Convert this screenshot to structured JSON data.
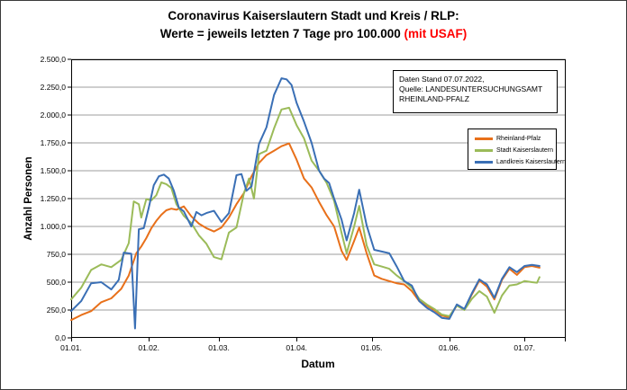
{
  "title": {
    "line1": "Coronavirus Kaiserslautern Stadt und Kreis / RLP:",
    "line2_main": "Werte = jeweils letzten 7 Tage pro 100.000 ",
    "line2_red": "(mit USAF)",
    "red_color": "#ff0000"
  },
  "annotation_box": {
    "lines": [
      "Daten Stand 07.07.2022,",
      "Quelle: LANDESUNTERSUCHUNGSAMT",
      "RHEINLAND-PFALZ"
    ]
  },
  "y_axis": {
    "label": "Anzahl Personen",
    "tick_labels": [
      "2.500,0",
      "2.250,0",
      "2.000,0",
      "1.750,0",
      "1.500,0",
      "1.250,0",
      "1.000,0",
      "750,0",
      "500,0",
      "250,0",
      "0,0"
    ],
    "tick_values": [
      2500,
      2250,
      2000,
      1750,
      1500,
      1250,
      1000,
      750,
      500,
      250,
      0
    ]
  },
  "x_axis": {
    "label": "Datum",
    "ticks": [
      {
        "label": "01.01.",
        "day": 0
      },
      {
        "label": "01.02.",
        "day": 31
      },
      {
        "label": "01.03.",
        "day": 59
      },
      {
        "label": "01.04.",
        "day": 90
      },
      {
        "label": "01.05.",
        "day": 120
      },
      {
        "label": "01.06.",
        "day": 151
      },
      {
        "label": "01.07.",
        "day": 181
      }
    ]
  },
  "legend": {
    "entries": [
      {
        "label": "Rheinland-Pfalz",
        "color": "#e8701a"
      },
      {
        "label": "Stadt Kaiserslautern",
        "color": "#9bbb59"
      },
      {
        "label": "Landkreis Kaiserslautern",
        "color": "#3a6fb5"
      }
    ]
  },
  "chart_data": {
    "type": "line",
    "title": "Coronavirus Kaiserslautern Stadt und Kreis / RLP: Werte = jeweils letzten 7 Tage pro 100.000 (mit USAF)",
    "xlabel": "Datum",
    "ylabel": "Anzahl Personen",
    "x_unit": "days since 01.01.2022",
    "x_range_days": [
      0,
      197
    ],
    "ylim": [
      0,
      2500
    ],
    "y_tick_step": 250,
    "grid": true,
    "legend_position": "right",
    "gridline_color": "#9c9c9c",
    "axis_color": "#000000",
    "series": [
      {
        "name": "Rheinland-Pfalz",
        "color": "#e8701a",
        "points": [
          [
            0,
            160
          ],
          [
            4,
            205
          ],
          [
            8,
            240
          ],
          [
            12,
            320
          ],
          [
            16,
            355
          ],
          [
            20,
            440
          ],
          [
            23,
            560
          ],
          [
            26,
            760
          ],
          [
            28,
            820
          ],
          [
            30,
            895
          ],
          [
            32,
            985
          ],
          [
            34,
            1050
          ],
          [
            36,
            1105
          ],
          [
            38,
            1145
          ],
          [
            40,
            1160
          ],
          [
            42,
            1150
          ],
          [
            45,
            1180
          ],
          [
            48,
            1090
          ],
          [
            51,
            1025
          ],
          [
            54,
            985
          ],
          [
            57,
            955
          ],
          [
            60,
            990
          ],
          [
            63,
            1080
          ],
          [
            66,
            1200
          ],
          [
            69,
            1300
          ],
          [
            72,
            1450
          ],
          [
            75,
            1570
          ],
          [
            78,
            1640
          ],
          [
            81,
            1680
          ],
          [
            84,
            1720
          ],
          [
            87,
            1745
          ],
          [
            90,
            1600
          ],
          [
            93,
            1430
          ],
          [
            96,
            1350
          ],
          [
            99,
            1220
          ],
          [
            102,
            1100
          ],
          [
            105,
            1000
          ],
          [
            108,
            780
          ],
          [
            110,
            700
          ],
          [
            113,
            870
          ],
          [
            115,
            990
          ],
          [
            118,
            760
          ],
          [
            121,
            560
          ],
          [
            124,
            530
          ],
          [
            127,
            510
          ],
          [
            130,
            490
          ],
          [
            133,
            480
          ],
          [
            136,
            420
          ],
          [
            139,
            330
          ],
          [
            142,
            290
          ],
          [
            145,
            250
          ],
          [
            148,
            200
          ],
          [
            151,
            185
          ],
          [
            154,
            290
          ],
          [
            157,
            255
          ],
          [
            160,
            390
          ],
          [
            163,
            515
          ],
          [
            166,
            460
          ],
          [
            169,
            345
          ],
          [
            172,
            520
          ],
          [
            175,
            620
          ],
          [
            178,
            565
          ],
          [
            181,
            635
          ],
          [
            184,
            645
          ],
          [
            187,
            630
          ]
        ]
      },
      {
        "name": "Stadt Kaiserslautern",
        "color": "#9bbb59",
        "points": [
          [
            0,
            345
          ],
          [
            4,
            450
          ],
          [
            8,
            610
          ],
          [
            12,
            660
          ],
          [
            16,
            635
          ],
          [
            20,
            700
          ],
          [
            23,
            850
          ],
          [
            25,
            1225
          ],
          [
            27,
            1200
          ],
          [
            28,
            1080
          ],
          [
            30,
            1245
          ],
          [
            32,
            1235
          ],
          [
            34,
            1280
          ],
          [
            36,
            1395
          ],
          [
            38,
            1380
          ],
          [
            40,
            1345
          ],
          [
            42,
            1200
          ],
          [
            45,
            1095
          ],
          [
            48,
            1030
          ],
          [
            51,
            920
          ],
          [
            54,
            845
          ],
          [
            57,
            725
          ],
          [
            60,
            705
          ],
          [
            63,
            945
          ],
          [
            66,
            990
          ],
          [
            69,
            1300
          ],
          [
            71,
            1430
          ],
          [
            73,
            1250
          ],
          [
            75,
            1650
          ],
          [
            78,
            1680
          ],
          [
            81,
            1880
          ],
          [
            84,
            2050
          ],
          [
            87,
            2065
          ],
          [
            90,
            1910
          ],
          [
            93,
            1790
          ],
          [
            96,
            1590
          ],
          [
            99,
            1500
          ],
          [
            102,
            1390
          ],
          [
            105,
            1230
          ],
          [
            108,
            940
          ],
          [
            110,
            760
          ],
          [
            113,
            1000
          ],
          [
            115,
            1185
          ],
          [
            118,
            830
          ],
          [
            121,
            660
          ],
          [
            124,
            640
          ],
          [
            127,
            620
          ],
          [
            130,
            560
          ],
          [
            133,
            510
          ],
          [
            136,
            450
          ],
          [
            139,
            350
          ],
          [
            142,
            300
          ],
          [
            145,
            260
          ],
          [
            148,
            210
          ],
          [
            151,
            195
          ],
          [
            154,
            290
          ],
          [
            157,
            250
          ],
          [
            160,
            350
          ],
          [
            163,
            420
          ],
          [
            166,
            370
          ],
          [
            169,
            225
          ],
          [
            172,
            380
          ],
          [
            175,
            470
          ],
          [
            178,
            480
          ],
          [
            181,
            510
          ],
          [
            184,
            500
          ],
          [
            186,
            495
          ],
          [
            187,
            545
          ]
        ]
      },
      {
        "name": "Landkreis Kaiserslautern",
        "color": "#3a6fb5",
        "points": [
          [
            0,
            240
          ],
          [
            4,
            330
          ],
          [
            8,
            490
          ],
          [
            12,
            500
          ],
          [
            16,
            435
          ],
          [
            19,
            520
          ],
          [
            21,
            765
          ],
          [
            24,
            755
          ],
          [
            25.5,
            85
          ],
          [
            27,
            975
          ],
          [
            29,
            985
          ],
          [
            31,
            1170
          ],
          [
            33,
            1370
          ],
          [
            35,
            1450
          ],
          [
            37,
            1465
          ],
          [
            39,
            1430
          ],
          [
            41,
            1320
          ],
          [
            43,
            1170
          ],
          [
            45,
            1135
          ],
          [
            48,
            1000
          ],
          [
            50,
            1130
          ],
          [
            52,
            1100
          ],
          [
            54,
            1120
          ],
          [
            57,
            1140
          ],
          [
            60,
            1040
          ],
          [
            63,
            1120
          ],
          [
            66,
            1460
          ],
          [
            68,
            1470
          ],
          [
            70,
            1320
          ],
          [
            72,
            1360
          ],
          [
            75,
            1740
          ],
          [
            78,
            1890
          ],
          [
            81,
            2180
          ],
          [
            84,
            2330
          ],
          [
            86,
            2320
          ],
          [
            88,
            2270
          ],
          [
            90,
            2110
          ],
          [
            93,
            1940
          ],
          [
            96,
            1750
          ],
          [
            99,
            1500
          ],
          [
            101,
            1430
          ],
          [
            103,
            1390
          ],
          [
            105,
            1250
          ],
          [
            108,
            1060
          ],
          [
            110,
            875
          ],
          [
            113,
            1120
          ],
          [
            115,
            1330
          ],
          [
            118,
            1010
          ],
          [
            121,
            790
          ],
          [
            124,
            775
          ],
          [
            127,
            760
          ],
          [
            130,
            640
          ],
          [
            133,
            510
          ],
          [
            136,
            470
          ],
          [
            139,
            330
          ],
          [
            142,
            270
          ],
          [
            145,
            230
          ],
          [
            148,
            180
          ],
          [
            151,
            170
          ],
          [
            154,
            300
          ],
          [
            157,
            260
          ],
          [
            160,
            400
          ],
          [
            163,
            525
          ],
          [
            166,
            480
          ],
          [
            169,
            360
          ],
          [
            172,
            530
          ],
          [
            175,
            635
          ],
          [
            178,
            590
          ],
          [
            181,
            645
          ],
          [
            184,
            655
          ],
          [
            187,
            645
          ]
        ]
      }
    ]
  }
}
